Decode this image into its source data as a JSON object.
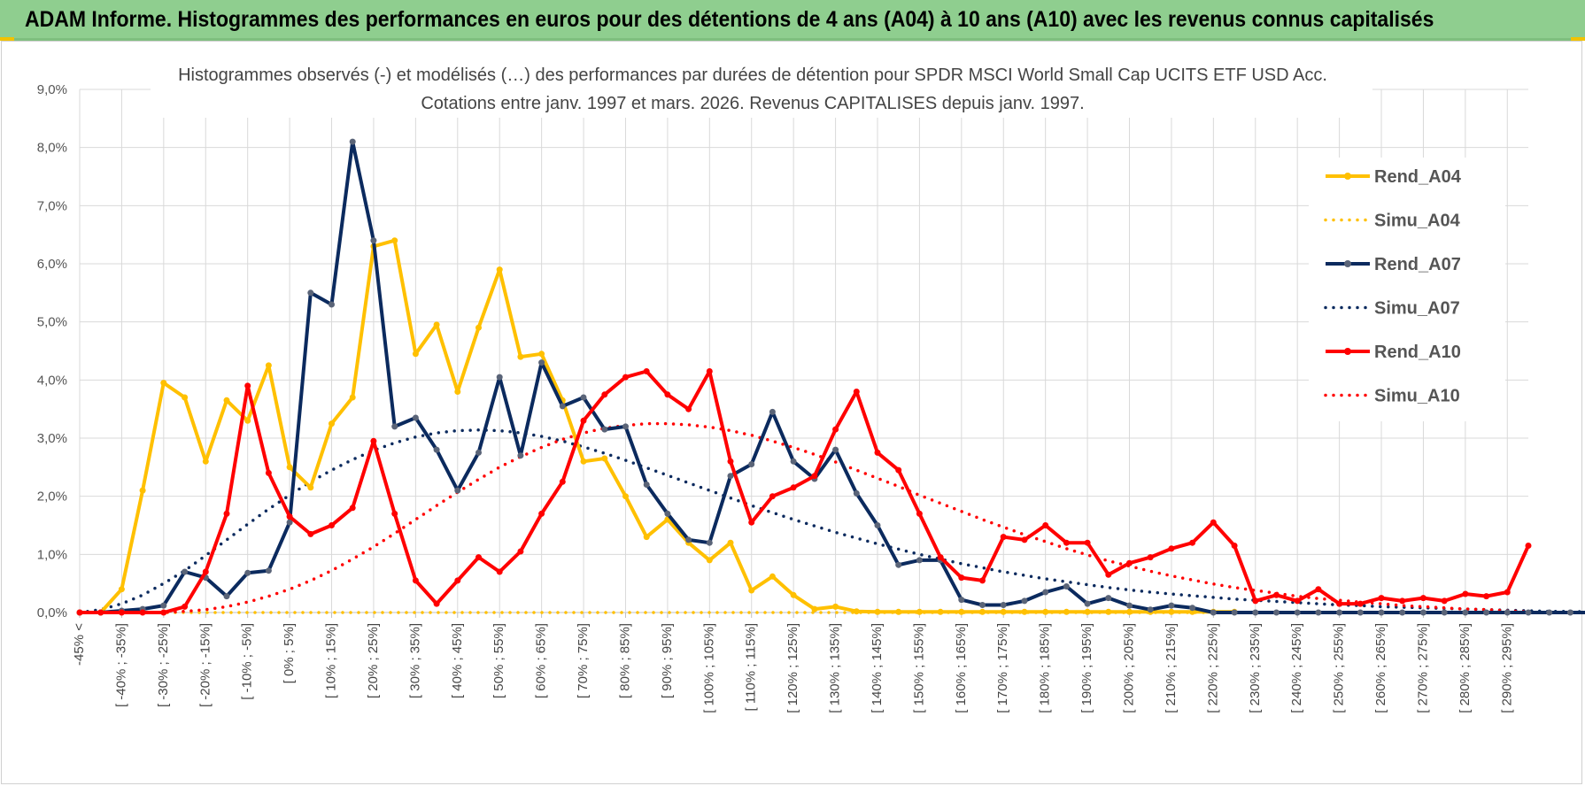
{
  "banner": {
    "title": "ADAM Informe. Histogrammes des performances en euros pour des détentions de 4 ans (A04) à 10 ans (A10) avec les revenus connus capitalisés",
    "background_color": "#8fce8f",
    "corner_color": "#f2c200"
  },
  "chart_data": {
    "type": "line",
    "title_line1": "Histogrammes observés (-) et modélisés (…) des performances par durées de détention pour SPDR MSCI World Small Cap UCITS ETF USD Acc.",
    "title_line2": "Cotations entre janv. 1997 et mars. 2026. Revenus CAPITALISES depuis janv. 1997.",
    "ylim": [
      0,
      9
    ],
    "y_ticks": [
      "0,0%",
      "1,0%",
      "2,0%",
      "3,0%",
      "4,0%",
      "5,0%",
      "6,0%",
      "7,0%",
      "8,0%",
      "9,0%"
    ],
    "grid": true,
    "legend_position": "right",
    "x_tick_labels": [
      "-45% <",
      "[ -40% ; -35%]",
      "[ -30% ; -25%]",
      "[ -20% ; -15%]",
      "[ -10% ; -5%]",
      "[ 0% ; 5%]",
      "[ 10% ; 15%]",
      "[ 20% ; 25%]",
      "[ 30% ; 35%]",
      "[ 40% ; 45%]",
      "[ 50% ; 55%]",
      "[ 60% ; 65%]",
      "[ 70% ; 75%]",
      "[ 80% ; 85%]",
      "[ 90% ; 95%]",
      "[ 100% ; 105%]",
      "[ 110% ; 115%]",
      "[ 120% ; 125%]",
      "[ 130% ; 135%]",
      "[ 140% ; 145%]",
      "[ 150% ; 155%]",
      "[ 160% ; 165%]",
      "[ 170% ; 175%]",
      "[ 180% ; 185%]",
      "[ 190% ; 195%]",
      "[ 200% ; 205%]",
      "[ 210% ; 215%]",
      "[ 220% ; 225%]",
      "[ 230% ; 235%]",
      "[ 240% ; 245%]",
      "[ 250% ; 255%]",
      "[ 260% ; 265%]",
      "[ 270% ; 275%]",
      "[ 280% ; 285%]",
      "[ 290% ; 295%]"
    ],
    "series": [
      {
        "name": "Rend_A04",
        "color": "#ffc000",
        "style": "solid",
        "values": [
          0,
          0,
          0.4,
          2.1,
          3.95,
          3.7,
          2.6,
          3.65,
          3.3,
          4.25,
          2.5,
          2.15,
          3.25,
          3.7,
          6.3,
          6.4,
          4.45,
          4.95,
          3.8,
          4.9,
          5.9,
          4.4,
          4.45,
          3.65,
          2.6,
          2.65,
          2.0,
          1.3,
          1.6,
          1.2,
          0.9,
          1.2,
          0.38,
          0.62,
          0.3,
          0.06,
          0.1,
          0.02,
          0.01,
          0.01,
          0.01,
          0.01,
          0.01,
          0.01,
          0.01,
          0.01,
          0.01,
          0.01,
          0.01,
          0.01,
          0.01,
          0.01,
          0.01,
          0.01,
          0.01,
          0.01
        ]
      },
      {
        "name": "Simu_A04",
        "color": "#ffc000",
        "style": "dotted",
        "values": [
          0,
          0,
          0,
          0,
          0,
          0,
          0,
          0,
          0,
          0,
          0,
          0,
          0,
          0,
          0,
          0,
          0,
          0,
          0,
          0,
          0,
          0,
          0,
          0,
          0,
          0,
          0,
          0,
          0,
          0,
          0,
          0,
          0,
          0,
          0,
          0,
          0,
          0,
          0,
          0,
          0,
          0,
          0,
          0,
          0,
          0,
          0,
          0,
          0,
          0,
          0,
          0,
          0,
          0,
          0,
          0
        ]
      },
      {
        "name": "Rend_A07",
        "color": "#0b2a5e",
        "style": "solid",
        "values": [
          0,
          0,
          0.03,
          0.06,
          0.12,
          0.7,
          0.6,
          0.28,
          0.68,
          0.72,
          1.55,
          5.5,
          5.3,
          8.1,
          6.4,
          3.2,
          3.35,
          2.8,
          2.1,
          2.75,
          4.05,
          2.7,
          4.3,
          3.55,
          3.7,
          3.15,
          3.2,
          2.2,
          1.7,
          1.25,
          1.2,
          2.35,
          2.55,
          3.45,
          2.6,
          2.3,
          2.8,
          2.05,
          1.5,
          0.82,
          0.9,
          0.9,
          0.22,
          0.13,
          0.13,
          0.2,
          0.35,
          0.45,
          0.15,
          0.25,
          0.12,
          0.05,
          0.12,
          0.08,
          0,
          0,
          0,
          0,
          0,
          0,
          0,
          0,
          0,
          0,
          0,
          0,
          0,
          0,
          0,
          0,
          0,
          0,
          0,
          0,
          0,
          0,
          0,
          0,
          0,
          0
        ]
      },
      {
        "name": "Simu_A07",
        "color": "#0b2a5e",
        "style": "dotted",
        "values": [
          0,
          0.05,
          0.15,
          0.3,
          0.5,
          0.72,
          0.98,
          1.25,
          1.52,
          1.78,
          2.02,
          2.25,
          2.45,
          2.63,
          2.79,
          2.92,
          3.02,
          3.09,
          3.13,
          3.14,
          3.13,
          3.09,
          3.03,
          2.95,
          2.85,
          2.74,
          2.62,
          2.49,
          2.36,
          2.23,
          2.1,
          1.97,
          1.84,
          1.72,
          1.6,
          1.49,
          1.38,
          1.28,
          1.18,
          1.09,
          1.0,
          0.92,
          0.84,
          0.77,
          0.7,
          0.64,
          0.58,
          0.53,
          0.48,
          0.43,
          0.39,
          0.35,
          0.32,
          0.29,
          0.26,
          0.23,
          0.21,
          0.19,
          0.17,
          0.15,
          0.13,
          0.12,
          0.1,
          0.09,
          0.08,
          0.07,
          0.06,
          0.05,
          0.04,
          0.03,
          0.02,
          0.02,
          0.01,
          0.01,
          0,
          0,
          0,
          0,
          0,
          0,
          0
        ]
      },
      {
        "name": "Rend_A10",
        "color": "#ff0000",
        "style": "solid",
        "values": [
          0,
          0,
          0,
          0,
          0,
          0.1,
          0.7,
          1.7,
          3.9,
          2.4,
          1.65,
          1.35,
          1.5,
          1.8,
          2.95,
          1.7,
          0.55,
          0.15,
          0.55,
          0.95,
          0.7,
          1.05,
          1.7,
          2.25,
          3.3,
          3.75,
          4.05,
          4.15,
          3.75,
          3.5,
          4.15,
          2.6,
          1.55,
          2.0,
          2.15,
          2.35,
          3.15,
          3.8,
          2.75,
          2.45,
          1.7,
          0.95,
          0.6,
          0.55,
          1.3,
          1.25,
          1.5,
          1.2,
          1.2,
          0.65,
          0.85,
          0.95,
          1.1,
          1.2,
          1.55,
          1.15,
          0.2,
          0.3,
          0.2,
          0.4,
          0.15,
          0.15,
          0.25,
          0.2,
          0.25,
          0.2,
          0.32,
          0.28,
          0.35,
          1.15
        ]
      },
      {
        "name": "Simu_A10",
        "color": "#ff0000",
        "style": "dotted",
        "values": [
          0,
          0,
          0,
          0,
          0,
          0.02,
          0.05,
          0.1,
          0.18,
          0.28,
          0.4,
          0.55,
          0.72,
          0.92,
          1.13,
          1.36,
          1.6,
          1.84,
          2.07,
          2.29,
          2.5,
          2.68,
          2.84,
          2.98,
          3.09,
          3.17,
          3.22,
          3.25,
          3.25,
          3.23,
          3.19,
          3.13,
          3.05,
          2.95,
          2.84,
          2.72,
          2.59,
          2.45,
          2.31,
          2.17,
          2.02,
          1.88,
          1.74,
          1.6,
          1.47,
          1.34,
          1.22,
          1.1,
          0.99,
          0.89,
          0.8,
          0.71,
          0.63,
          0.56,
          0.49,
          0.43,
          0.38,
          0.33,
          0.28,
          0.24,
          0.21,
          0.18,
          0.15,
          0.12,
          0.1,
          0.08,
          0.06,
          0.05,
          0.03,
          0.01
        ]
      }
    ]
  }
}
